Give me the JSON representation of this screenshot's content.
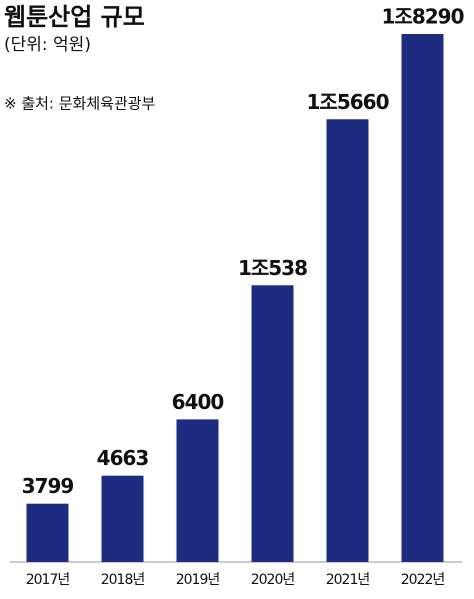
{
  "chart_data": {
    "type": "bar",
    "title": "웹툰산업 규모",
    "subtitle": "(단위: 억원)",
    "source": "※ 출처: 문화체육관광부",
    "categories": [
      "2017년",
      "2018년",
      "2019년",
      "2020년",
      "2021년",
      "2022년"
    ],
    "values": [
      3799,
      4663,
      6400,
      10538,
      15660,
      18290
    ],
    "value_labels": [
      "3799",
      "4663",
      "6400",
      "1조538",
      "1조5660",
      "1조8290"
    ],
    "color": "#1d2b80",
    "ylim": [
      2000,
      19000
    ]
  }
}
